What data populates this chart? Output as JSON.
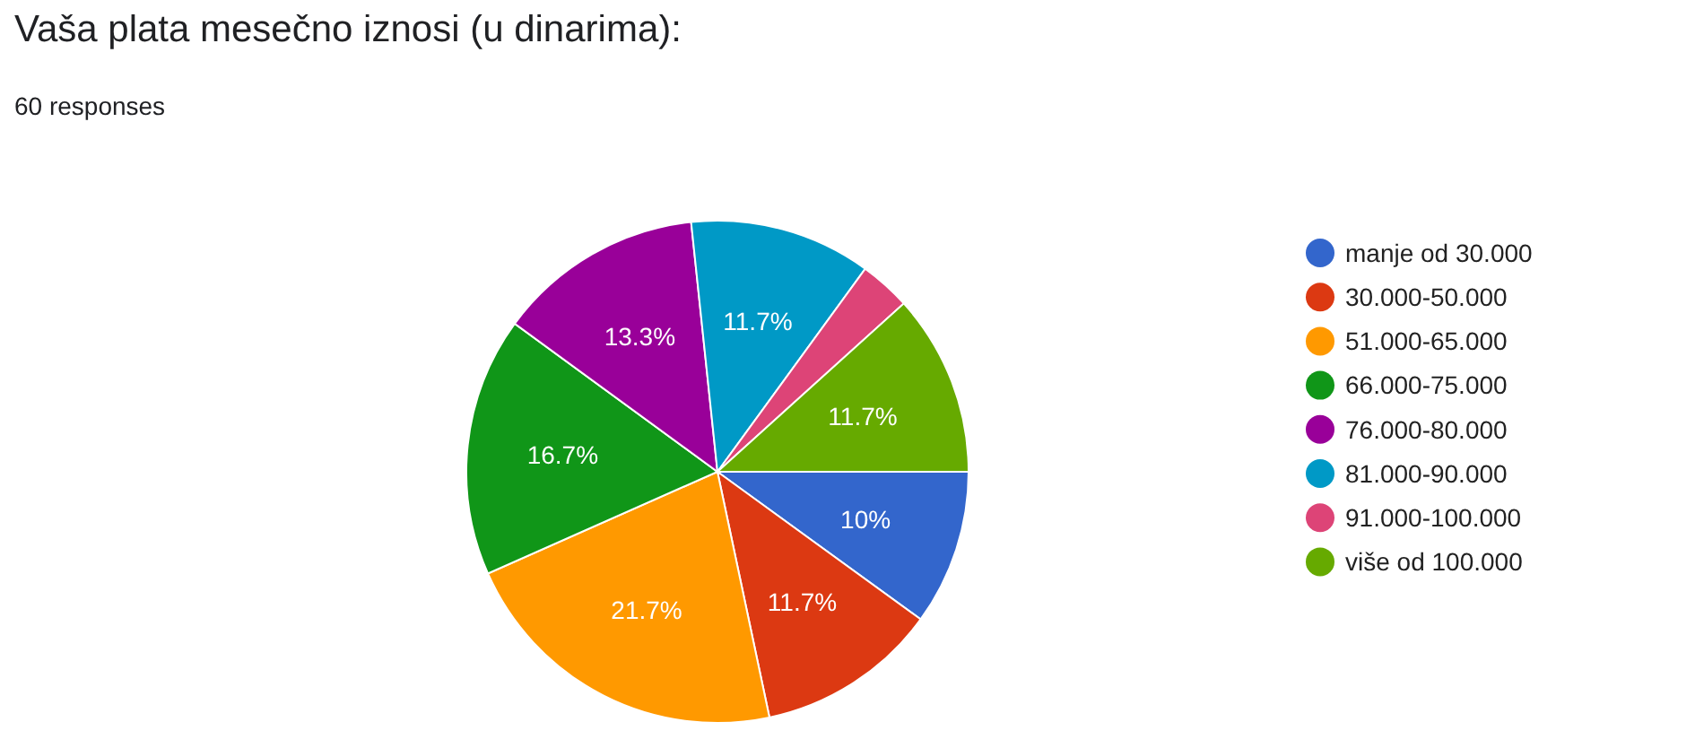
{
  "chart_data": {
    "type": "pie",
    "title": "Vaša plata mesečno iznosi (u dinarima):",
    "subtitle": "60 responses",
    "categories": [
      "manje od 30.000",
      "30.000-50.000",
      "51.000-65.000",
      "66.000-75.000",
      "76.000-80.000",
      "81.000-90.000",
      "91.000-100.000",
      "više od 100.000"
    ],
    "values": [
      10,
      11.7,
      21.7,
      16.7,
      13.3,
      11.7,
      3.3,
      11.7
    ],
    "value_labels": [
      "10%",
      "11.7%",
      "21.7%",
      "16.7%",
      "13.3%",
      "11.7%",
      null,
      "11.7%"
    ],
    "colors": [
      "#3366cc",
      "#dc3912",
      "#ff9900",
      "#109618",
      "#990099",
      "#0099c6",
      "#dd4477",
      "#66aa00"
    ],
    "legend": "right"
  }
}
